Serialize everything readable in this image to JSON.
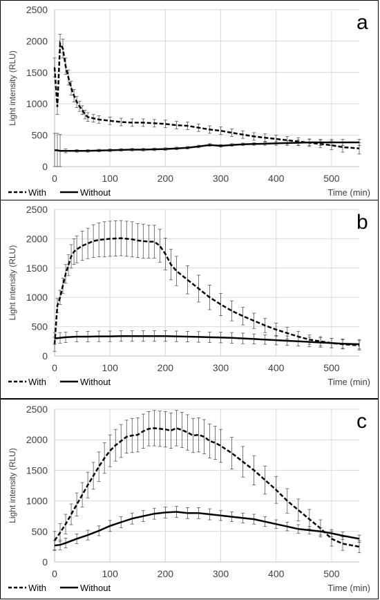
{
  "chart_data": [
    {
      "type": "line",
      "panel_label": "a",
      "ylabel": "Light intensity (RLU)",
      "xlabel": "Time (min)",
      "xlim": [
        0,
        550
      ],
      "ylim": [
        0,
        2500
      ],
      "xticks": [
        0,
        100,
        200,
        300,
        400,
        500
      ],
      "yticks": [
        0,
        500,
        1000,
        1500,
        2000,
        2500
      ],
      "grid": true,
      "legend_position": "bottom-left",
      "series": [
        {
          "name": "With",
          "style": "dashed",
          "x": [
            0,
            5,
            10,
            15,
            20,
            25,
            30,
            35,
            40,
            45,
            50,
            55,
            60,
            70,
            80,
            100,
            120,
            140,
            160,
            180,
            200,
            220,
            240,
            260,
            280,
            300,
            320,
            340,
            360,
            380,
            400,
            420,
            440,
            460,
            480,
            500,
            520,
            550
          ],
          "y": [
            1580,
            950,
            1960,
            1880,
            1600,
            1420,
            1250,
            1130,
            1030,
            960,
            900,
            830,
            790,
            770,
            750,
            730,
            710,
            700,
            700,
            690,
            680,
            660,
            650,
            620,
            590,
            570,
            540,
            510,
            480,
            460,
            440,
            420,
            400,
            380,
            360,
            340,
            310,
            290
          ],
          "error": [
            150,
            120,
            150,
            150,
            130,
            120,
            110,
            100,
            90,
            80,
            70,
            70,
            70,
            60,
            60,
            60,
            60,
            60,
            60,
            60,
            60,
            60,
            60,
            60,
            60,
            60,
            60,
            60,
            60,
            60,
            60,
            60,
            60,
            60,
            60,
            70,
            80,
            90
          ]
        },
        {
          "name": "Without",
          "style": "solid",
          "x": [
            0,
            5,
            10,
            20,
            40,
            60,
            80,
            100,
            120,
            140,
            160,
            180,
            200,
            220,
            240,
            260,
            280,
            300,
            320,
            340,
            360,
            380,
            400,
            420,
            440,
            460,
            480,
            500,
            520,
            550
          ],
          "y": [
            260,
            260,
            250,
            250,
            250,
            250,
            255,
            260,
            265,
            270,
            270,
            275,
            280,
            290,
            300,
            320,
            345,
            330,
            345,
            355,
            360,
            365,
            370,
            375,
            380,
            385,
            385,
            385,
            385,
            385
          ],
          "error": [
            270,
            270,
            260,
            30,
            20,
            20,
            20,
            20,
            20,
            20,
            20,
            20,
            20,
            20,
            20,
            20,
            20,
            20,
            20,
            20,
            20,
            25,
            30,
            40,
            45,
            50,
            50,
            50,
            50,
            50
          ]
        }
      ]
    },
    {
      "type": "line",
      "panel_label": "b",
      "ylabel": "Light intensity (RLU)",
      "xlabel": "Time (min)",
      "xlim": [
        0,
        550
      ],
      "ylim": [
        0,
        2500
      ],
      "xticks": [
        0,
        100,
        200,
        300,
        400,
        500
      ],
      "yticks": [
        0,
        500,
        1000,
        1500,
        2000,
        2500
      ],
      "grid": true,
      "legend_position": "bottom-left",
      "series": [
        {
          "name": "With",
          "style": "dashed",
          "x": [
            0,
            5,
            10,
            15,
            20,
            25,
            30,
            35,
            40,
            50,
            60,
            70,
            80,
            90,
            100,
            110,
            120,
            130,
            140,
            150,
            160,
            170,
            180,
            190,
            200,
            210,
            220,
            240,
            260,
            280,
            300,
            320,
            340,
            360,
            380,
            400,
            420,
            440,
            460,
            480,
            500,
            520,
            550
          ],
          "y": [
            200,
            860,
            1000,
            1200,
            1400,
            1550,
            1700,
            1780,
            1820,
            1880,
            1920,
            1960,
            1980,
            1990,
            2000,
            2005,
            2010,
            2000,
            1990,
            1970,
            1960,
            1950,
            1950,
            1880,
            1740,
            1560,
            1450,
            1300,
            1150,
            1000,
            880,
            770,
            680,
            600,
            520,
            450,
            390,
            330,
            280,
            250,
            220,
            200,
            180
          ],
          "error": [
            120,
            120,
            120,
            130,
            160,
            180,
            200,
            220,
            230,
            250,
            260,
            280,
            290,
            300,
            300,
            300,
            300,
            300,
            300,
            290,
            290,
            280,
            280,
            280,
            270,
            260,
            250,
            240,
            230,
            210,
            190,
            170,
            150,
            130,
            120,
            110,
            100,
            90,
            80,
            80,
            80,
            80,
            80
          ]
        },
        {
          "name": "Without",
          "style": "solid",
          "x": [
            0,
            10,
            20,
            40,
            60,
            80,
            100,
            120,
            140,
            160,
            180,
            200,
            220,
            240,
            260,
            280,
            300,
            320,
            340,
            360,
            380,
            400,
            420,
            440,
            460,
            480,
            500,
            520,
            550
          ],
          "y": [
            300,
            310,
            320,
            330,
            330,
            335,
            335,
            340,
            340,
            340,
            340,
            340,
            335,
            330,
            325,
            320,
            315,
            310,
            300,
            290,
            280,
            270,
            260,
            250,
            240,
            230,
            220,
            210,
            200
          ],
          "error": [
            100,
            90,
            90,
            90,
            90,
            90,
            90,
            90,
            90,
            90,
            90,
            90,
            90,
            90,
            90,
            90,
            90,
            90,
            90,
            85,
            80,
            80,
            80,
            80,
            80,
            80,
            80,
            80,
            80
          ]
        }
      ]
    },
    {
      "type": "line",
      "panel_label": "c",
      "ylabel": "Light intensity (RLU)",
      "xlabel": "Time (min)",
      "xlim": [
        0,
        550
      ],
      "ylim": [
        0,
        2500
      ],
      "xticks": [
        0,
        100,
        200,
        300,
        400,
        500
      ],
      "yticks": [
        0,
        500,
        1000,
        1500,
        2000,
        2500
      ],
      "grid": true,
      "legend_position": "bottom-left",
      "series": [
        {
          "name": "With",
          "style": "dashed",
          "x": [
            0,
            10,
            20,
            30,
            40,
            50,
            60,
            70,
            80,
            90,
            100,
            110,
            120,
            130,
            140,
            150,
            160,
            170,
            180,
            190,
            200,
            210,
            220,
            230,
            240,
            250,
            260,
            270,
            280,
            290,
            300,
            320,
            340,
            360,
            380,
            400,
            420,
            440,
            460,
            480,
            500,
            520,
            550
          ],
          "y": [
            350,
            480,
            620,
            780,
            940,
            1100,
            1260,
            1410,
            1560,
            1700,
            1820,
            1910,
            1980,
            2050,
            2070,
            2080,
            2140,
            2180,
            2190,
            2180,
            2170,
            2150,
            2190,
            2160,
            2120,
            2070,
            2080,
            2050,
            1980,
            1950,
            1900,
            1780,
            1640,
            1500,
            1340,
            1180,
            1000,
            850,
            700,
            550,
            380,
            300,
            250
          ],
          "error": [
            150,
            150,
            160,
            170,
            190,
            200,
            210,
            220,
            240,
            250,
            260,
            260,
            270,
            270,
            280,
            280,
            280,
            280,
            290,
            290,
            290,
            290,
            290,
            290,
            290,
            280,
            280,
            280,
            280,
            270,
            270,
            260,
            250,
            240,
            230,
            220,
            200,
            180,
            160,
            140,
            120,
            110,
            100
          ]
        },
        {
          "name": "Without",
          "style": "solid",
          "x": [
            0,
            10,
            20,
            40,
            60,
            80,
            100,
            120,
            140,
            160,
            180,
            200,
            220,
            240,
            260,
            280,
            300,
            320,
            340,
            360,
            380,
            400,
            420,
            440,
            460,
            480,
            500,
            520,
            550
          ],
          "y": [
            270,
            280,
            310,
            380,
            440,
            510,
            590,
            650,
            710,
            750,
            790,
            810,
            820,
            800,
            800,
            780,
            760,
            740,
            720,
            700,
            660,
            620,
            580,
            540,
            520,
            500,
            470,
            430,
            380
          ],
          "error": [
            80,
            80,
            80,
            80,
            80,
            80,
            90,
            90,
            90,
            90,
            90,
            90,
            90,
            90,
            90,
            90,
            80,
            80,
            80,
            80,
            80,
            70,
            70,
            70,
            60,
            60,
            60,
            60,
            60
          ]
        }
      ]
    }
  ]
}
